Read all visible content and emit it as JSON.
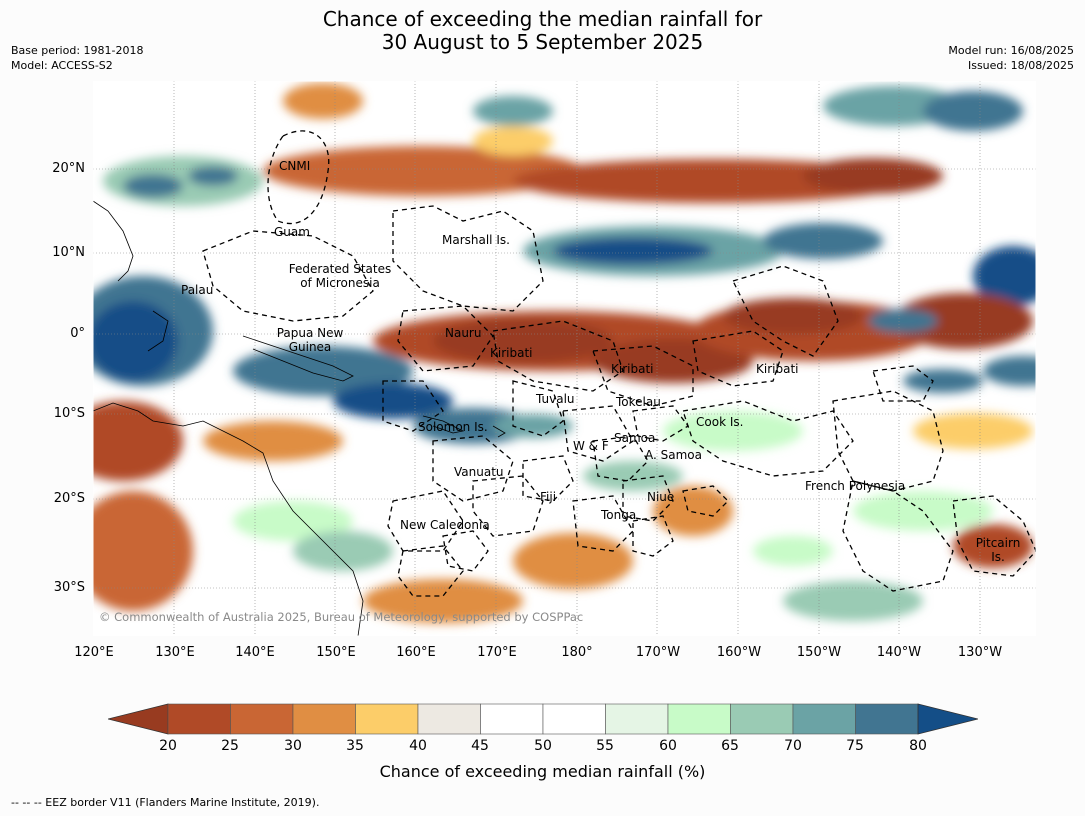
{
  "title_line1": "Chance of exceeding the median rainfall for",
  "title_line2": "30 August to 5 September 2025",
  "base_period": "Base period: 1981-2018",
  "model": "Model: ACCESS-S2",
  "model_run": "Model run: 16/08/2025",
  "issued": "Issued: 18/08/2025",
  "lat_labels": [
    "20°N",
    "10°N",
    "0°",
    "10°S",
    "20°S",
    "30°S"
  ],
  "lon_labels": [
    "120°E",
    "130°E",
    "140°E",
    "150°E",
    "160°E",
    "170°E",
    "180°",
    "170°W",
    "160°W",
    "150°W",
    "140°W",
    "130°W"
  ],
  "regions": {
    "cnmi": "CNMI",
    "guam": "Guam",
    "marshall": "Marshall Is.",
    "fsm_1": "Federated States",
    "fsm_2": "of Micronesia",
    "palau": "Palau",
    "png_1": "Papua New",
    "png_2": "Guinea",
    "nauru": "Nauru",
    "kiribati_w": "Kiribati",
    "kiribati_c": "Kiribati",
    "kiribati_e": "Kiribati",
    "tuvalu": "Tuvalu",
    "tokelau": "Tokelau",
    "solomon": "Solomon Is.",
    "wf": "W & F",
    "samoa": "Samoa",
    "asamoa": "A. Samoa",
    "cook": "Cook Is.",
    "vanuatu": "Vanuatu",
    "fiji": "Fiji",
    "niue": "Niue",
    "tonga": "Tonga",
    "frpoly": "French Polynesia",
    "newcal": "New Caledonia",
    "pitcairn_1": "Pitcairn",
    "pitcairn_2": "Is."
  },
  "copyright": "© Commonwealth of Australia 2025, Bureau of Meteorology, supported by COSPPac",
  "colorbar": {
    "ticks": [
      "20",
      "25",
      "30",
      "35",
      "40",
      "45",
      "50",
      "55",
      "60",
      "65",
      "70",
      "75",
      "80"
    ],
    "colors": [
      "#b04a27",
      "#c96634",
      "#e08e43",
      "#fccd69",
      "#ede9e2",
      "#ffffff",
      "#ffffff",
      "#e5f5e5",
      "#c8fbc8",
      "#9acbb4",
      "#6ba3a5",
      "#417591"
    ],
    "under_color": "#983b20",
    "over_color": "#144e87",
    "label": "Chance of exceeding median rainfall (%)"
  },
  "footnote": "-- -- -- EEZ border V11 (Flanders Marine Institute, 2019)."
}
